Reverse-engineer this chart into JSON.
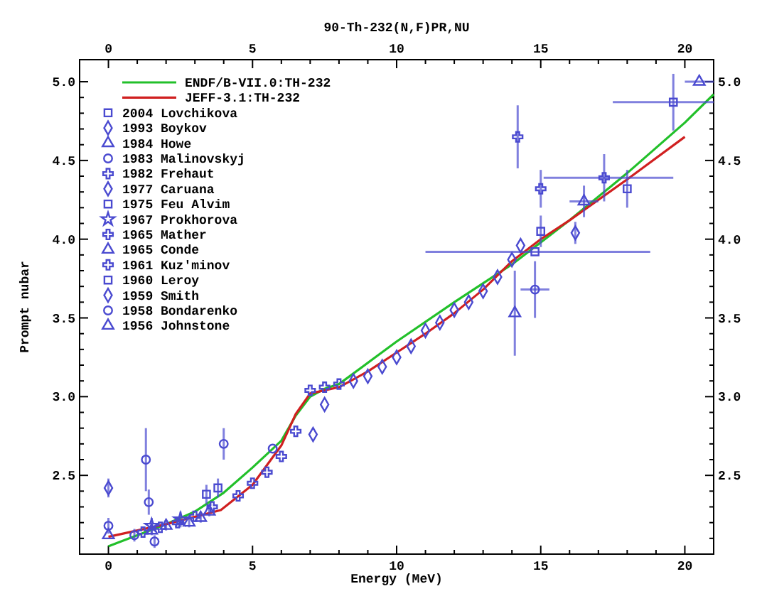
{
  "chart_data": {
    "type": "scatter",
    "title": "90-Th-232(N,F)PR,NU",
    "xlabel": "Energy (MeV)",
    "ylabel": "Prompt nubar",
    "legend": "top left",
    "xlim": [
      -1,
      21
    ],
    "xticks": [
      0,
      {
        "value": 1,
        "label": null
      },
      {
        "value": 2,
        "label": null
      },
      {
        "value": 3,
        "label": null
      },
      {
        "value": 4,
        "label": null
      },
      5,
      {
        "value": 6,
        "label": null
      },
      {
        "value": 7,
        "label": null
      },
      {
        "value": 8,
        "label": null
      },
      {
        "value": 9,
        "label": null
      },
      10,
      {
        "value": 11,
        "label": null
      },
      {
        "value": 12,
        "label": null
      },
      {
        "value": 13,
        "label": null
      },
      {
        "value": 14,
        "label": null
      },
      15,
      {
        "value": 16,
        "label": null
      },
      {
        "value": 17,
        "label": null
      },
      {
        "value": 18,
        "label": null
      },
      {
        "value": 19,
        "label": null
      },
      20
    ],
    "x2lim": [
      -1,
      21
    ],
    "x2ticks": [
      0,
      {
        "value": 1,
        "label": null
      },
      {
        "value": 2,
        "label": null
      },
      {
        "value": 3,
        "label": null
      },
      {
        "value": 4,
        "label": null
      },
      5,
      {
        "value": 6,
        "label": null
      },
      {
        "value": 7,
        "label": null
      },
      {
        "value": 8,
        "label": null
      },
      {
        "value": 9,
        "label": null
      },
      10,
      {
        "value": 11,
        "label": null
      },
      {
        "value": 12,
        "label": null
      },
      {
        "value": 13,
        "label": null
      },
      {
        "value": 14,
        "label": null
      },
      15,
      {
        "value": 16,
        "label": null
      },
      {
        "value": 17,
        "label": null
      },
      {
        "value": 18,
        "label": null
      },
      {
        "value": 19,
        "label": null
      },
      20
    ],
    "ylim": [
      2.0,
      5.14
    ],
    "yticks": [
      {
        "value": 2.1,
        "label": null
      },
      {
        "value": 2.2,
        "label": null
      },
      {
        "value": 2.3,
        "label": null
      },
      {
        "value": 2.4,
        "label": null
      },
      2.5,
      {
        "value": 2.6,
        "label": null
      },
      {
        "value": 2.7,
        "label": null
      },
      {
        "value": 2.8,
        "label": null
      },
      {
        "value": 2.9,
        "label": null
      },
      {
        "value": 3,
        "label": "3.0"
      },
      {
        "value": 3.1,
        "label": null
      },
      {
        "value": 3.2,
        "label": null
      },
      {
        "value": 3.3,
        "label": null
      },
      {
        "value": 3.4,
        "label": null
      },
      3.5,
      {
        "value": 3.6,
        "label": null
      },
      {
        "value": 3.7,
        "label": null
      },
      {
        "value": 3.8,
        "label": null
      },
      {
        "value": 3.9,
        "label": null
      },
      {
        "value": 4,
        "label": "4.0"
      },
      {
        "value": 4.1,
        "label": null
      },
      {
        "value": 4.2,
        "label": null
      },
      {
        "value": 4.3,
        "label": null
      },
      {
        "value": 4.4,
        "label": null
      },
      4.5,
      {
        "value": 4.6,
        "label": null
      },
      {
        "value": 4.7,
        "label": null
      },
      {
        "value": 4.8,
        "label": null
      },
      {
        "value": 4.9,
        "label": null
      },
      {
        "value": 5,
        "label": "5.0"
      }
    ],
    "y2lim": [
      2.0,
      5.14
    ],
    "y2ticks": [
      {
        "value": 2.1,
        "label": null
      },
      {
        "value": 2.2,
        "label": null
      },
      {
        "value": 2.3,
        "label": null
      },
      {
        "value": 2.4,
        "label": null
      },
      2.5,
      {
        "value": 2.6,
        "label": null
      },
      {
        "value": 2.7,
        "label": null
      },
      {
        "value": 2.8,
        "label": null
      },
      {
        "value": 2.9,
        "label": null
      },
      {
        "value": 3,
        "label": "3.0"
      },
      {
        "value": 3.1,
        "label": null
      },
      {
        "value": 3.2,
        "label": null
      },
      {
        "value": 3.3,
        "label": null
      },
      {
        "value": 3.4,
        "label": null
      },
      3.5,
      {
        "value": 3.6,
        "label": null
      },
      {
        "value": 3.7,
        "label": null
      },
      {
        "value": 3.8,
        "label": null
      },
      {
        "value": 3.9,
        "label": null
      },
      {
        "value": 4,
        "label": "4.0"
      },
      {
        "value": 4.1,
        "label": null
      },
      {
        "value": 4.2,
        "label": null
      },
      {
        "value": 4.3,
        "label": null
      },
      {
        "value": 4.4,
        "label": null
      },
      4.5,
      {
        "value": 4.6,
        "label": null
      },
      {
        "value": 4.7,
        "label": null
      },
      {
        "value": 4.8,
        "label": null
      },
      {
        "value": 4.9,
        "label": null
      },
      {
        "value": 5,
        "label": "5.0"
      }
    ],
    "series": [
      {
        "name": "ENDF/B-VII.0:TH-232",
        "type": "line",
        "color": "#22c02a",
        "x": [
          0,
          1,
          2,
          3,
          4,
          5,
          6,
          6.5,
          7,
          7.5,
          8,
          10,
          12,
          14,
          16,
          18,
          20,
          21
        ],
        "values": [
          2.05,
          2.12,
          2.19,
          2.27,
          2.39,
          2.55,
          2.72,
          2.88,
          3.0,
          3.05,
          3.08,
          3.35,
          3.6,
          3.84,
          4.12,
          4.42,
          4.74,
          4.92
        ]
      },
      {
        "name": "JEFF-3.1:TH-232",
        "type": "line",
        "color": "#d02020",
        "x": [
          0,
          2,
          3.9,
          5,
          6,
          6.5,
          7,
          8,
          9,
          10,
          11,
          12,
          13,
          14,
          15,
          16,
          18,
          20
        ],
        "values": [
          2.11,
          2.19,
          2.28,
          2.44,
          2.69,
          2.89,
          3.02,
          3.06,
          3.16,
          3.28,
          3.4,
          3.53,
          3.68,
          3.86,
          4.0,
          4.12,
          4.38,
          4.65
        ]
      },
      {
        "name": "2004 Lovchikova",
        "marker": "square",
        "color": "#4a4ad0",
        "x": [
          15.0,
          18.0
        ],
        "values": [
          4.05,
          4.32
        ],
        "errors": [
          0.1,
          0.12
        ]
      },
      {
        "name": "1993 Boykov",
        "marker": "diamond",
        "color": "#4a4ad0",
        "x": [
          8.5,
          9,
          9.5,
          10,
          10.5,
          11,
          11.5,
          12,
          12.5,
          13,
          13.5,
          14,
          14.3
        ],
        "values": [
          3.1,
          3.13,
          3.19,
          3.25,
          3.32,
          3.42,
          3.47,
          3.55,
          3.6,
          3.67,
          3.76,
          3.87,
          3.96
        ]
      },
      {
        "name": "1984 Howe",
        "marker": "triangle",
        "color": "#4a4ad0",
        "x": [
          1.5,
          2,
          2.8,
          3.2,
          3.5,
          14.1
        ],
        "values": [
          2.15,
          2.18,
          2.2,
          2.23,
          2.27,
          3.53
        ],
        "errors": [
          0.03,
          0.03,
          0.03,
          0.03,
          0.03,
          0.27
        ]
      },
      {
        "name": "1983 Malinovskyj",
        "marker": "circle",
        "color": "#4a4ad0",
        "x": [
          1.3,
          1.4,
          4.0,
          5.7,
          14.8
        ],
        "values": [
          2.6,
          2.33,
          2.7,
          2.67,
          3.68
        ],
        "errors": [
          0.2,
          0.08,
          0.1,
          null,
          0.18
        ],
        "xerrors": [
          null,
          null,
          null,
          null,
          0.5
        ]
      },
      {
        "name": "1982 Frehaut",
        "marker": "cross",
        "color": "#4a4ad0",
        "x": [
          1.2,
          1.8,
          2.4,
          3.0,
          3.6,
          4.5,
          5.0,
          5.5,
          6.0,
          6.5,
          7.0,
          7.5,
          8.0
        ],
        "values": [
          2.14,
          2.17,
          2.2,
          2.24,
          2.3,
          2.37,
          2.45,
          2.52,
          2.62,
          2.78,
          3.04,
          3.06,
          3.08
        ]
      },
      {
        "name": "1977 Caruana",
        "marker": "diamond",
        "color": "#4a4ad0",
        "x": [
          16.2
        ],
        "values": [
          4.04
        ],
        "errors": [
          0.07
        ]
      },
      {
        "name": "1975 Feu Alvim",
        "marker": "square",
        "color": "#4a4ad0",
        "x": [
          3.4,
          3.8
        ],
        "values": [
          2.38,
          2.42
        ],
        "errors": [
          0.06,
          0.06
        ]
      },
      {
        "name": "1967 Prokhorova",
        "marker": "star",
        "color": "#4a4ad0",
        "x": [
          1.5,
          2.5
        ],
        "values": [
          2.18,
          2.22
        ],
        "errors": [
          0.05,
          0.05
        ]
      },
      {
        "name": "1965 Mather",
        "marker": "cross",
        "color": "#4a4ad0",
        "x": [
          15.0,
          17.2
        ],
        "values": [
          4.32,
          4.39
        ],
        "errors": [
          0.12,
          0.15
        ],
        "xerrors": [
          null,
          [
            15.1,
            19.6
          ]
        ]
      },
      {
        "name": "1965 Conde",
        "marker": "triangle",
        "color": "#4a4ad0",
        "x": [
          16.5
        ],
        "values": [
          4.24
        ],
        "errors": [
          0.1
        ],
        "xerrors": [
          0.5
        ]
      },
      {
        "name": "1961 Kuz'minov",
        "marker": "cross",
        "color": "#4a4ad0",
        "x": [
          14.2
        ],
        "values": [
          4.65
        ],
        "errors": [
          0.2
        ]
      },
      {
        "name": "1960 Leroy",
        "marker": "square",
        "color": "#4a4ad0",
        "x": [
          14.8,
          19.6
        ],
        "values": [
          3.92,
          4.87
        ],
        "errors": [
          null,
          0.18
        ],
        "xerrors": [
          [
            11,
            18.8
          ],
          [
            17.5,
            21
          ]
        ]
      },
      {
        "name": "1959 Smith",
        "marker": "diamond",
        "color": "#4a4ad0",
        "x": [
          0,
          7.1,
          7.5
        ],
        "values": [
          2.42,
          2.76,
          2.95
        ],
        "errors": [
          0.06,
          null,
          null
        ]
      },
      {
        "name": "1958 Bondarenko",
        "marker": "circle",
        "color": "#4a4ad0",
        "x": [
          0,
          0.9,
          1.6
        ],
        "values": [
          2.18,
          2.12,
          2.08
        ],
        "errors": [
          0.05,
          0.04,
          0.04
        ]
      },
      {
        "name": "1956 Johnstone",
        "marker": "triangle",
        "color": "#4a4ad0",
        "x": [
          0,
          20.5
        ],
        "values": [
          2.12,
          5.0
        ],
        "xerrors": [
          null,
          [
            20,
            21
          ]
        ]
      }
    ]
  }
}
